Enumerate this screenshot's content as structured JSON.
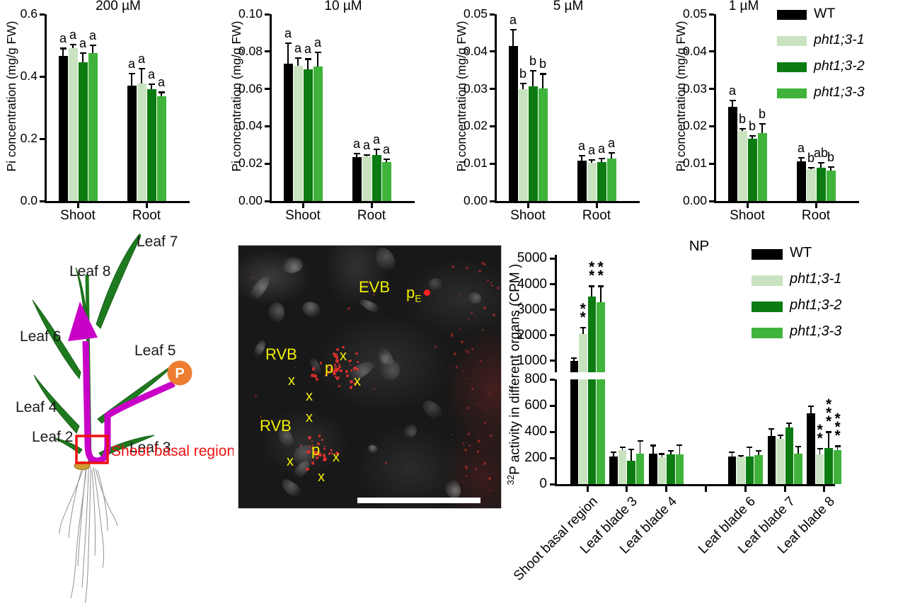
{
  "colors": {
    "series": [
      "#000000",
      "#c9e3c0",
      "#0c7c12",
      "#3fb33a"
    ],
    "magenta": "#c800c8",
    "orange": "#ed7d31",
    "red": "#ee1111",
    "yellow": "#f2ef00",
    "leaf_green": "#1e7a1e"
  },
  "series_names": [
    {
      "label": "WT",
      "italic": false
    },
    {
      "label": "pht1;3-1",
      "italic": true
    },
    {
      "label": "pht1;3-2",
      "italic": true
    },
    {
      "label": "pht1;3-3",
      "italic": true
    }
  ],
  "chart_data": [
    {
      "type": "bar",
      "title": "200 µM",
      "ylabel": "Pi concentration (mg/g FW)",
      "ylim": [
        0,
        0.6
      ],
      "yticks": [
        0,
        0.2,
        0.4,
        0.6
      ],
      "ytick_labels": [
        "0.0",
        "0.2",
        "0.4",
        "0.6"
      ],
      "categories": [
        "Shoot",
        "Root"
      ],
      "legend_position": "none",
      "series": [
        {
          "name": "WT",
          "values": [
            0.465,
            0.37
          ],
          "errors": [
            0.025,
            0.04
          ],
          "letters": [
            "a",
            "a"
          ]
        },
        {
          "name": "pht1;3-1",
          "values": [
            0.49,
            0.378
          ],
          "errors": [
            0.012,
            0.047
          ],
          "letters": [
            "a",
            "a"
          ]
        },
        {
          "name": "pht1;3-2",
          "values": [
            0.445,
            0.358
          ],
          "errors": [
            0.03,
            0.017
          ],
          "letters": [
            "a",
            "a"
          ]
        },
        {
          "name": "pht1;3-3",
          "values": [
            0.475,
            0.337
          ],
          "errors": [
            0.025,
            0.012
          ],
          "letters": [
            "a",
            "a"
          ]
        }
      ]
    },
    {
      "type": "bar",
      "title": "10 µM",
      "ylabel": "Pi concentration (mg/g FW)",
      "ylim": [
        0,
        0.1
      ],
      "yticks": [
        0,
        0.02,
        0.04,
        0.06,
        0.08,
        0.1
      ],
      "ytick_labels": [
        "0.00",
        "0.02",
        "0.04",
        "0.06",
        "0.08",
        "0.10"
      ],
      "categories": [
        "Shoot",
        "Root"
      ],
      "legend_position": "none",
      "series": [
        {
          "name": "WT",
          "values": [
            0.0735,
            0.0235
          ],
          "errors": [
            0.011,
            0.002
          ],
          "letters": [
            "a",
            "a"
          ]
        },
        {
          "name": "pht1;3-1",
          "values": [
            0.0725,
            0.0238
          ],
          "errors": [
            0.004,
            0.001
          ],
          "letters": [
            "a",
            "a"
          ]
        },
        {
          "name": "pht1;3-2",
          "values": [
            0.0705,
            0.0245
          ],
          "errors": [
            0.0055,
            0.0032
          ],
          "letters": [
            "a",
            "a"
          ]
        },
        {
          "name": "pht1;3-3",
          "values": [
            0.072,
            0.021
          ],
          "errors": [
            0.0075,
            0.0015
          ],
          "letters": [
            "a",
            "a"
          ]
        }
      ]
    },
    {
      "type": "bar",
      "title": "5 µM",
      "ylabel": "Pi concentration (mg/g FW)",
      "ylim": [
        0,
        0.05
      ],
      "yticks": [
        0,
        0.01,
        0.02,
        0.03,
        0.04,
        0.05
      ],
      "ytick_labels": [
        "0.00",
        "0.01",
        "0.02",
        "0.03",
        "0.04",
        "0.05"
      ],
      "categories": [
        "Shoot",
        "Root"
      ],
      "legend_position": "none",
      "series": [
        {
          "name": "WT",
          "values": [
            0.0415,
            0.0108
          ],
          "errors": [
            0.0043,
            0.0013
          ],
          "letters": [
            "a",
            "a"
          ]
        },
        {
          "name": "pht1;3-1",
          "values": [
            0.03,
            0.0102
          ],
          "errors": [
            0.0015,
            0.0008
          ],
          "letters": [
            "b",
            "a"
          ]
        },
        {
          "name": "pht1;3-2",
          "values": [
            0.0307,
            0.0104
          ],
          "errors": [
            0.0042,
            0.001
          ],
          "letters": [
            "b",
            "a"
          ]
        },
        {
          "name": "pht1;3-3",
          "values": [
            0.0302,
            0.0114
          ],
          "errors": [
            0.0038,
            0.0015
          ],
          "letters": [
            "b",
            "a"
          ]
        }
      ]
    },
    {
      "type": "bar",
      "title": "1 µM",
      "ylabel": "Pi concentration (mg/g FW)",
      "ylim": [
        0,
        0.05
      ],
      "yticks": [
        0,
        0.01,
        0.02,
        0.03,
        0.04,
        0.05
      ],
      "ytick_labels": [
        "0.00",
        "0.01",
        "0.02",
        "0.03",
        "0.04",
        "0.05"
      ],
      "categories": [
        "Shoot",
        "Root"
      ],
      "legend_position": "top-right",
      "series": [
        {
          "name": "WT",
          "values": [
            0.0251,
            0.0106
          ],
          "errors": [
            0.0018,
            0.0009
          ],
          "letters": [
            "a",
            "a"
          ]
        },
        {
          "name": "pht1;3-1",
          "values": [
            0.0188,
            0.0085
          ],
          "errors": [
            0.0006,
            0.0004
          ],
          "letters": [
            "b",
            "b"
          ]
        },
        {
          "name": "pht1;3-2",
          "values": [
            0.0167,
            0.0089
          ],
          "errors": [
            0.0008,
            0.0013
          ],
          "letters": [
            "b",
            "ab"
          ]
        },
        {
          "name": "pht1;3-3",
          "values": [
            0.0182,
            0.0082
          ],
          "errors": [
            0.0024,
            0.0009
          ],
          "letters": [
            "b",
            "b"
          ]
        }
      ]
    },
    {
      "type": "bar",
      "title": "NP",
      "ylabel_sup": "32",
      "ylabel_rest": "P activity in different organs (CPM )",
      "broken_axis": true,
      "upper_ylim": [
        550,
        5150
      ],
      "upper_ticks": [
        1000,
        2000,
        3000,
        4000,
        5000
      ],
      "lower_ylim": [
        0,
        800
      ],
      "lower_ticks": [
        0,
        200,
        400,
        600,
        800
      ],
      "categories": [
        "Shoot basal region",
        "Leaf blade 3",
        "Leaf blade 4",
        "",
        "Leaf blade 6",
        "Leaf blade 7",
        "Leaf blade 8"
      ],
      "legend_position": "top-right",
      "series": [
        {
          "name": "WT",
          "values": [
            1000,
            210,
            230,
            null,
            210,
            365,
            540
          ],
          "errors": [
            110,
            35,
            65,
            null,
            35,
            55,
            55
          ],
          "stars": [
            "",
            "",
            "",
            "",
            "",
            "",
            ""
          ]
        },
        {
          "name": "pht1;3-1",
          "values": [
            2050,
            260,
            205,
            null,
            205,
            345,
            225
          ],
          "errors": [
            240,
            20,
            25,
            null,
            10,
            30,
            45
          ],
          "stars": [
            "**",
            "",
            "",
            "",
            "",
            "",
            "**"
          ]
        },
        {
          "name": "pht1;3-2",
          "values": [
            3520,
            180,
            228,
            null,
            212,
            430,
            278
          ],
          "errors": [
            400,
            85,
            25,
            null,
            70,
            35,
            120
          ],
          "stars": [
            "**",
            "",
            "",
            "",
            "",
            "",
            "***"
          ]
        },
        {
          "name": "pht1;3-3",
          "values": [
            3300,
            230,
            225,
            null,
            224,
            232,
            262
          ],
          "errors": [
            620,
            100,
            75,
            null,
            30,
            55,
            28
          ],
          "stars": [
            "**",
            "",
            "",
            "",
            "",
            "",
            "***"
          ]
        }
      ]
    }
  ],
  "plant": {
    "leaves": {
      "leaf2": "Leaf 2",
      "leaf3": "Leaf 3",
      "leaf4": "Leaf 4",
      "leaf5": "Leaf 5",
      "leaf6": "Leaf 6",
      "leaf7": "Leaf 7",
      "leaf8": "Leaf 8"
    },
    "p_badge": "P",
    "basal_label": "Shoot basal region"
  },
  "micrograph": {
    "evb": "EVB",
    "pe_base": "p",
    "pe_sub": "E",
    "rvb": "RVB",
    "p": "p",
    "x": "x"
  }
}
